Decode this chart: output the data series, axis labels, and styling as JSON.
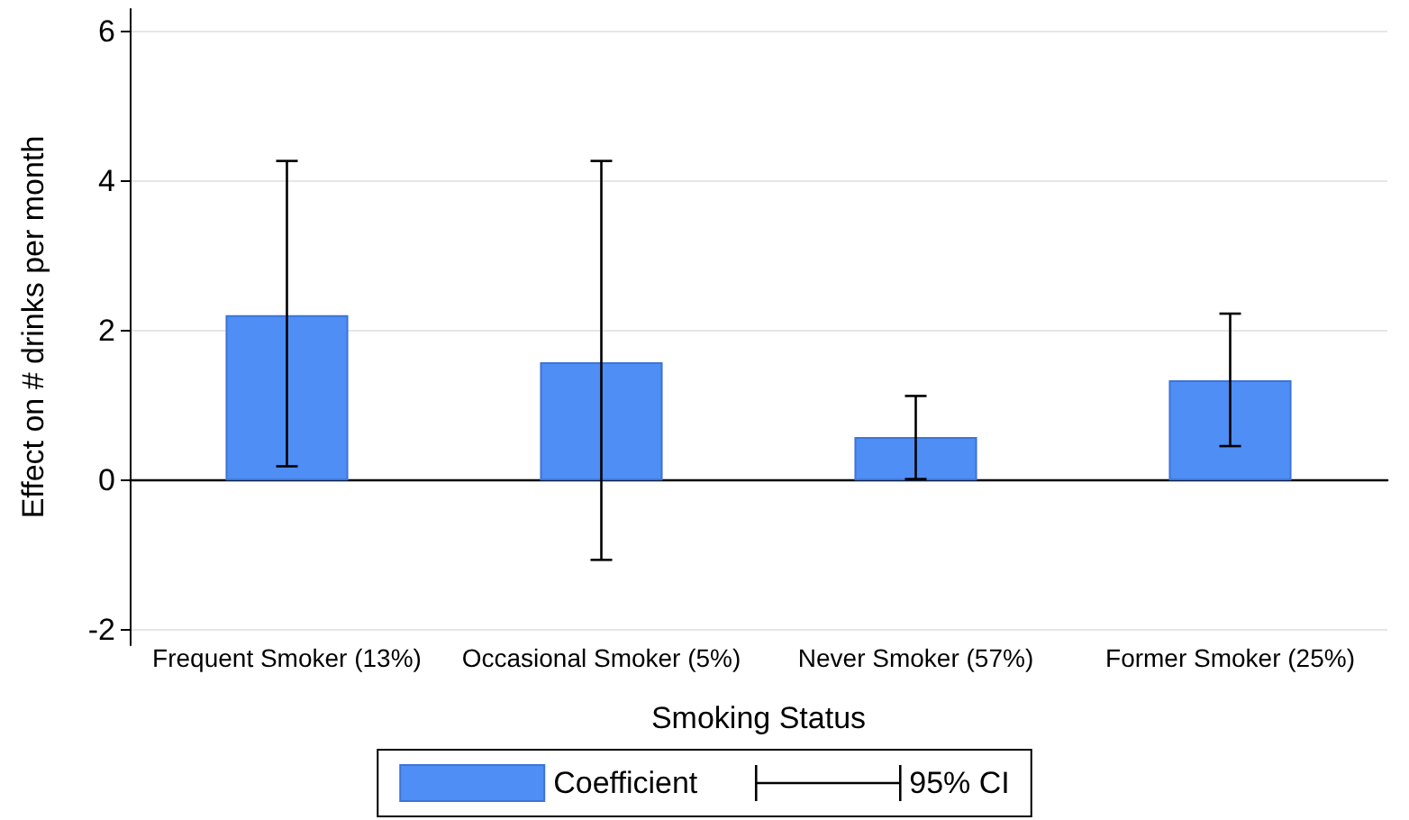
{
  "chart_data": {
    "type": "bar",
    "xlabel": "Smoking Status",
    "ylabel": "Effect on # drinks per month",
    "categories": [
      "Frequent Smoker (13%)",
      "Occasional Smoker (5%)",
      "Never Smoker (57%)",
      "Former Smoker (25%)"
    ],
    "series": [
      {
        "name": "Coefficient",
        "color": "#4f8ef5",
        "values": [
          2.21,
          1.58,
          0.58,
          1.34
        ],
        "errors": [
          [
            0.19,
            4.27
          ],
          [
            -1.06,
            4.27
          ],
          [
            0.02,
            1.13
          ],
          [
            0.46,
            2.23
          ]
        ]
      }
    ],
    "annotations": [
      "95% CI"
    ],
    "ylim": [
      -2.2,
      6.3
    ],
    "yticks": [
      -2,
      0,
      2,
      4,
      6
    ],
    "grid": "y",
    "legend": "bottom"
  }
}
